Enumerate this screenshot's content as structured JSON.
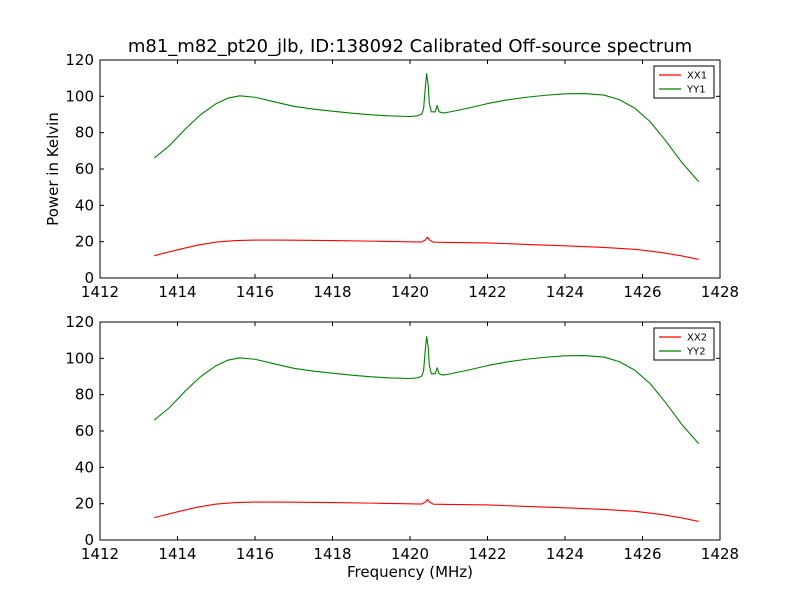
{
  "figure": {
    "title": "m81_m82_pt20_jlb, ID:138092 Calibrated Off-source spectrum",
    "colors": {
      "xx": "#ff0000",
      "yy": "#008000",
      "axes": "#000000",
      "background": "#ffffff"
    }
  },
  "chart_data": [
    {
      "type": "line",
      "title": "m81_m82_pt20_jlb, ID:138092 Calibrated Off-source spectrum",
      "xlabel": "",
      "ylabel": "Power in Kelvin",
      "xlim": [
        1412,
        1428
      ],
      "ylim": [
        0,
        120
      ],
      "xticks": [
        1412,
        1414,
        1416,
        1418,
        1420,
        1422,
        1424,
        1426,
        1428
      ],
      "yticks": [
        0,
        20,
        40,
        60,
        80,
        100,
        120
      ],
      "grid": false,
      "legend": "top-right",
      "series": [
        {
          "name": "XX1",
          "color": "#ff0000",
          "x": [
            1413.4,
            1414.0,
            1414.5,
            1415.0,
            1415.5,
            1416.0,
            1416.5,
            1417.0,
            1418.0,
            1419.0,
            1420.0,
            1420.3,
            1420.4,
            1420.45,
            1420.5,
            1420.6,
            1421.0,
            1422.0,
            1423.0,
            1424.0,
            1425.0,
            1425.8,
            1426.5,
            1427.0,
            1427.45
          ],
          "y": [
            12.3,
            15.5,
            18.0,
            19.8,
            20.6,
            20.9,
            20.9,
            20.8,
            20.6,
            20.3,
            19.9,
            19.8,
            21.0,
            22.5,
            21.0,
            19.7,
            19.6,
            19.3,
            18.5,
            17.7,
            16.8,
            15.8,
            14.0,
            12.2,
            10.2
          ]
        },
        {
          "name": "YY1",
          "color": "#008000",
          "x": [
            1413.4,
            1413.8,
            1414.2,
            1414.6,
            1415.0,
            1415.3,
            1415.6,
            1416.0,
            1416.5,
            1417.0,
            1417.5,
            1418.0,
            1418.5,
            1419.0,
            1419.5,
            1420.0,
            1420.2,
            1420.3,
            1420.35,
            1420.4,
            1420.43,
            1420.47,
            1420.5,
            1420.55,
            1420.65,
            1420.7,
            1420.75,
            1420.85,
            1421.0,
            1421.5,
            1422.0,
            1422.5,
            1423.0,
            1423.5,
            1424.0,
            1424.5,
            1425.0,
            1425.4,
            1425.8,
            1426.2,
            1426.6,
            1427.0,
            1427.45
          ],
          "y": [
            66,
            73,
            82,
            90,
            96,
            99,
            100.3,
            99.5,
            97,
            94.5,
            93,
            91.8,
            90.7,
            89.8,
            89.2,
            88.9,
            89.3,
            90.2,
            93,
            106,
            112.5,
            106,
            96,
            91.5,
            91.5,
            95,
            91.5,
            90.8,
            91.3,
            93.5,
            96,
            98,
            99.5,
            100.6,
            101.4,
            101.5,
            100.7,
            98.2,
            93.5,
            86,
            75.5,
            64,
            53
          ]
        }
      ]
    },
    {
      "type": "line",
      "title": "",
      "xlabel": "Frequency (MHz)",
      "ylabel": "",
      "xlim": [
        1412,
        1428
      ],
      "ylim": [
        0,
        120
      ],
      "xticks": [
        1412,
        1414,
        1416,
        1418,
        1420,
        1422,
        1424,
        1426,
        1428
      ],
      "yticks": [
        0,
        20,
        40,
        60,
        80,
        100,
        120
      ],
      "grid": false,
      "legend": "top-right",
      "series": [
        {
          "name": "XX2",
          "color": "#ff0000",
          "x": [
            1413.4,
            1414.0,
            1414.5,
            1415.0,
            1415.5,
            1416.0,
            1416.5,
            1417.0,
            1418.0,
            1419.0,
            1420.0,
            1420.3,
            1420.4,
            1420.45,
            1420.5,
            1420.6,
            1421.0,
            1422.0,
            1423.0,
            1424.0,
            1425.0,
            1425.8,
            1426.5,
            1427.0,
            1427.45
          ],
          "y": [
            12.3,
            15.5,
            18.0,
            19.8,
            20.6,
            20.9,
            20.9,
            20.8,
            20.6,
            20.3,
            19.9,
            19.8,
            21.0,
            22.3,
            21.0,
            19.7,
            19.6,
            19.3,
            18.5,
            17.7,
            16.8,
            15.8,
            14.0,
            12.2,
            10.2
          ]
        },
        {
          "name": "YY2",
          "color": "#008000",
          "x": [
            1413.4,
            1413.8,
            1414.2,
            1414.6,
            1415.0,
            1415.3,
            1415.6,
            1416.0,
            1416.5,
            1417.0,
            1417.5,
            1418.0,
            1418.5,
            1419.0,
            1419.5,
            1420.0,
            1420.2,
            1420.3,
            1420.35,
            1420.4,
            1420.43,
            1420.47,
            1420.5,
            1420.55,
            1420.65,
            1420.7,
            1420.75,
            1420.85,
            1421.0,
            1421.5,
            1422.0,
            1422.5,
            1423.0,
            1423.5,
            1424.0,
            1424.5,
            1425.0,
            1425.4,
            1425.8,
            1426.2,
            1426.6,
            1427.0,
            1427.45
          ],
          "y": [
            66,
            73,
            82,
            90,
            96,
            99,
            100.3,
            99.5,
            97,
            94.5,
            93,
            91.8,
            90.7,
            89.8,
            89.2,
            88.9,
            89.3,
            90.2,
            93,
            106,
            112,
            106,
            96,
            91.5,
            91.5,
            94.8,
            91.5,
            90.8,
            91.3,
            93.5,
            96,
            98,
            99.5,
            100.6,
            101.4,
            101.5,
            100.7,
            98.2,
            93.5,
            86,
            75.5,
            64,
            53
          ]
        }
      ]
    }
  ]
}
